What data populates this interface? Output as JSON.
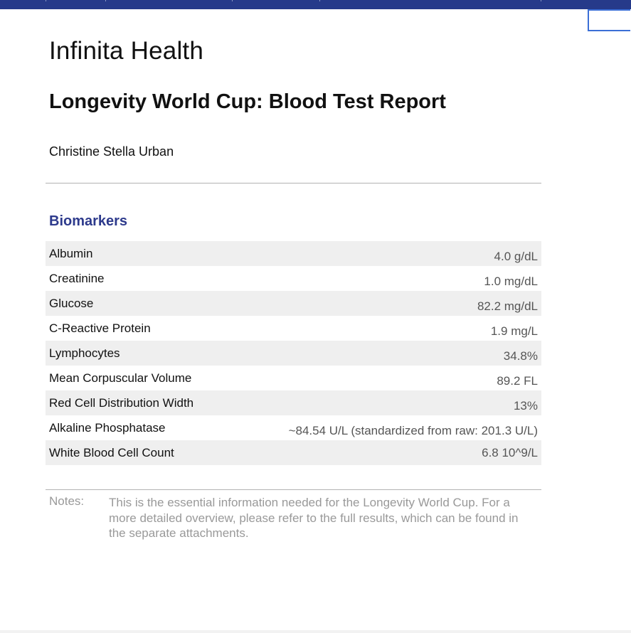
{
  "colors": {
    "top_bar": "#263a8a",
    "section_heading": "#2d3a8c",
    "row_stripe": "#efefef",
    "value_text": "#555555",
    "notes_text": "#999999",
    "corner_box_border": "#3b6fd6"
  },
  "header": {
    "org_name": "Infinita Health",
    "report_title": "Longevity World Cup: Blood Test Report",
    "person_name": "Christine Stella Urban"
  },
  "biomarkers": {
    "heading": "Biomarkers",
    "rows": [
      {
        "name": "Albumin",
        "value": "4.0 g/dL"
      },
      {
        "name": "Creatinine",
        "value": "1.0 mg/dL"
      },
      {
        "name": "Glucose",
        "value": "82.2 mg/dL"
      },
      {
        "name": "C-Reactive Protein",
        "value": "1.9 mg/L"
      },
      {
        "name": "Lymphocytes",
        "value": "34.8%"
      },
      {
        "name": "Mean Corpuscular Volume",
        "value": "89.2 FL"
      },
      {
        "name": "Red Cell Distribution Width",
        "value": "13%"
      },
      {
        "name": "Alkaline Phosphatase",
        "value": "~84.54 U/L (standardized from raw: 201.3 U/L)"
      },
      {
        "name": "White Blood Cell Count",
        "value": "6.8 10^9/L"
      }
    ]
  },
  "notes": {
    "label": "Notes:",
    "text": "This is the essential information needed for the Longevity World Cup. For a more detailed overview, please refer to the full results, which can be found in the separate attachments."
  }
}
